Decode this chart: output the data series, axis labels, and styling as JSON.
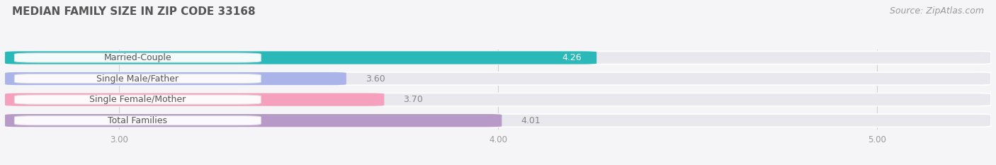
{
  "title": "MEDIAN FAMILY SIZE IN ZIP CODE 33168",
  "source": "Source: ZipAtlas.com",
  "categories": [
    "Married-Couple",
    "Single Male/Father",
    "Single Female/Mother",
    "Total Families"
  ],
  "values": [
    4.26,
    3.6,
    3.7,
    4.01
  ],
  "bar_colors": [
    "#2ab8b8",
    "#aab4e8",
    "#f5a0bc",
    "#b89ac8"
  ],
  "bar_bg_color": "#e8e8ee",
  "background_color": "#f5f5f7",
  "xlim_left": 2.7,
  "xlim_right": 5.3,
  "xticks": [
    3.0,
    4.0,
    5.0
  ],
  "value_label_color_inside": "#ffffff",
  "value_label_color_outside": "#888888",
  "title_color": "#555555",
  "category_label_color": "#555555",
  "bar_height": 0.62,
  "title_fontsize": 11,
  "source_fontsize": 9,
  "label_fontsize": 9,
  "value_fontsize": 9,
  "tick_fontsize": 8.5
}
